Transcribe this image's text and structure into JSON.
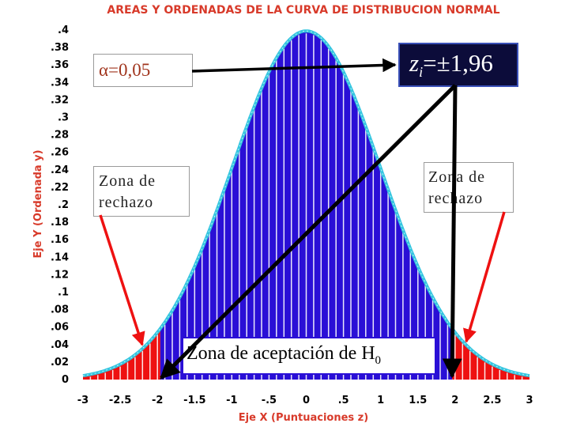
{
  "chart_data": {
    "type": "area",
    "title": "AREAS Y ORDENADAS DE LA CURVA DE DISTRIBUCION NORMAL",
    "xlabel": "Eje X (Puntuaciones z)",
    "ylabel": "Eje Y (Ordenada y)",
    "xlim": [
      -3,
      3
    ],
    "ylim": [
      0,
      0.4
    ],
    "x_ticks": [
      "-3",
      "-2.5",
      "-2",
      "-1.5",
      "-1",
      "-.5",
      "0",
      ".5",
      "1",
      "1.5",
      "2",
      "2.5",
      "3"
    ],
    "y_ticks": [
      "0",
      ".02",
      ".04",
      ".06",
      ".08",
      ".1",
      ".12",
      ".14",
      ".16",
      ".18",
      ".2",
      ".22",
      ".24",
      ".26",
      ".28",
      ".3",
      ".32",
      ".34",
      ".36",
      ".38",
      ".4"
    ],
    "curve": "standard normal density, mean 0, standard deviation 1",
    "acceptance_region": [
      -1.96,
      1.96
    ],
    "rejection_regions": [
      [
        -3,
        -1.96
      ],
      [
        1.96,
        3
      ]
    ],
    "critical_value": 1.96,
    "alpha": 0.05,
    "grid": false,
    "colors": {
      "background": "#ffffff",
      "acceptance_fill": "#2a0fd6",
      "rejection_fill": "#ee1111",
      "curve_outline": "#34c6e0",
      "axis_text": "#d83a2a",
      "arrow_black": "#000000",
      "arrow_red": "#ee1111",
      "label_box_dark": "#0c0c3a"
    }
  },
  "annotations": {
    "alpha_label": "α=0,05",
    "z_prefix": "z",
    "z_sub": "i",
    "z_value": "=±1,96",
    "reject_left_line1": "Zona de",
    "reject_left_line2": "rechazo",
    "reject_right_line1": "Zona de",
    "reject_right_line2": "rechazo",
    "accept_text": "Zona de aceptación de H",
    "accept_sub": "0"
  }
}
